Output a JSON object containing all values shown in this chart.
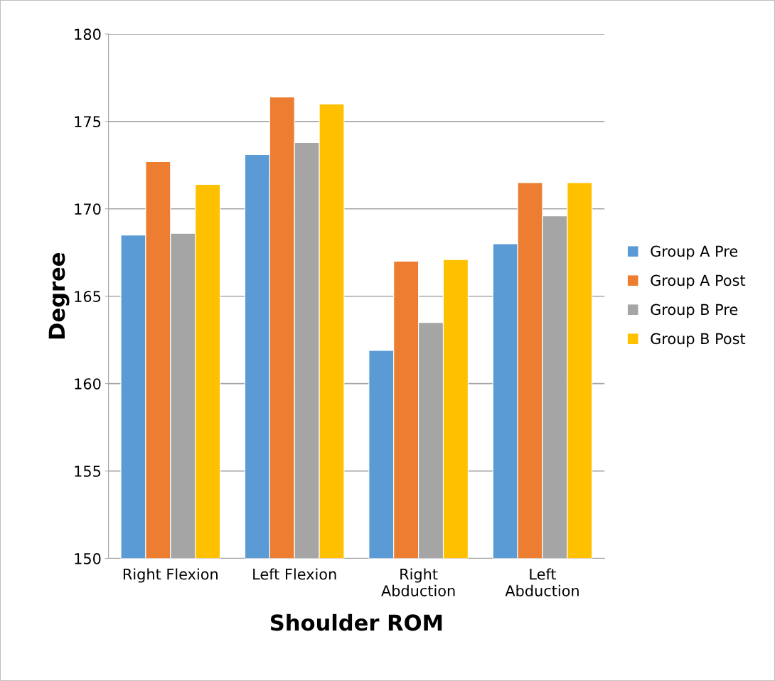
{
  "chart_data": {
    "type": "bar",
    "xlabel": "Shoulder ROM",
    "ylabel": "Degree",
    "categories": [
      "Right Flexion",
      "Left Flexion",
      "Right\nAbduction",
      "Left\nAbduction"
    ],
    "series": [
      {
        "name": "Group A Pre",
        "color": "#5b9bd5",
        "values": [
          168.5,
          173.1,
          161.9,
          168.0
        ]
      },
      {
        "name": "Group A Post",
        "color": "#ed7d31",
        "values": [
          172.7,
          176.4,
          167.0,
          171.5
        ]
      },
      {
        "name": "Group B Pre",
        "color": "#a5a5a5",
        "values": [
          168.6,
          173.8,
          163.5,
          169.6
        ]
      },
      {
        "name": "Group B Post",
        "color": "#ffc000",
        "values": [
          171.4,
          176.0,
          167.1,
          171.5
        ]
      }
    ],
    "ylim": [
      150,
      180
    ],
    "yticks": [
      150,
      155,
      160,
      165,
      170,
      175,
      180
    ],
    "grid": "y",
    "legend": "right"
  }
}
